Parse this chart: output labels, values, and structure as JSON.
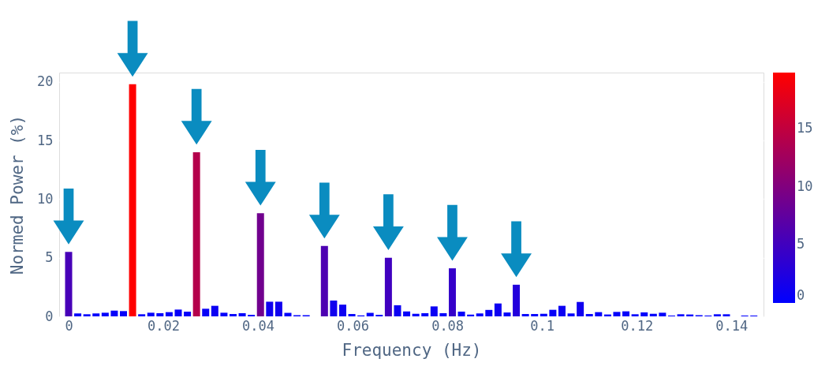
{
  "chart_data": {
    "type": "bar",
    "xlabel": "Frequency (Hz)",
    "ylabel": "Normed Power (%)",
    "x": [
      0,
      0.00193,
      0.00386,
      0.00579,
      0.00772,
      0.00965,
      0.01158,
      0.01351,
      0.01544,
      0.01737,
      0.0193,
      0.02123,
      0.02316,
      0.02509,
      0.02702,
      0.02895,
      0.03088,
      0.03281,
      0.03474,
      0.03667,
      0.0386,
      0.04053,
      0.04246,
      0.04439,
      0.04632,
      0.04825,
      0.05018,
      0.05211,
      0.05404,
      0.05597,
      0.0579,
      0.05983,
      0.06176,
      0.06369,
      0.06562,
      0.06755,
      0.06948,
      0.07141,
      0.07334,
      0.07527,
      0.0772,
      0.07913,
      0.08106,
      0.08299,
      0.08492,
      0.08685,
      0.08878,
      0.09071,
      0.09264,
      0.09457,
      0.0965,
      0.09843,
      0.10036,
      0.10229,
      0.10422,
      0.10615,
      0.10808,
      0.11001,
      0.11194,
      0.11387,
      0.1158,
      0.11773,
      0.11966,
      0.12159,
      0.12352,
      0.12545,
      0.12738,
      0.12931,
      0.13124,
      0.13317,
      0.1351,
      0.13703,
      0.13896,
      0.14089,
      0.14282,
      0.14475
    ],
    "values": [
      5.5,
      0.25,
      0.18,
      0.25,
      0.31,
      0.49,
      0.45,
      19.8,
      0.18,
      0.31,
      0.27,
      0.36,
      0.58,
      0.4,
      14.0,
      0.65,
      0.9,
      0.31,
      0.2,
      0.27,
      0.13,
      8.8,
      1.25,
      1.25,
      0.3,
      0.1,
      0.1,
      0,
      6.0,
      1.35,
      1.0,
      0.2,
      0.08,
      0.3,
      0.13,
      5.0,
      0.95,
      0.42,
      0.22,
      0.27,
      0.85,
      0.27,
      4.1,
      0.4,
      0.15,
      0.25,
      0.55,
      1.1,
      0.33,
      2.7,
      0.2,
      0.2,
      0.22,
      0.56,
      0.9,
      0.25,
      1.23,
      0.2,
      0.36,
      0.16,
      0.38,
      0.43,
      0.18,
      0.34,
      0.22,
      0.31,
      0.07,
      0.18,
      0.16,
      0.1,
      0.07,
      0.18,
      0.18,
      null,
      0.07,
      0.07
    ],
    "xlim": [
      -0.002,
      0.1468
    ],
    "xticks": [
      0,
      0.02,
      0.04,
      0.06,
      0.08,
      0.1,
      0.12,
      0.14
    ],
    "ylim": [
      0,
      20.8
    ],
    "yticks": [
      0,
      5,
      10,
      15,
      20
    ],
    "clim": [
      0,
      19.8
    ],
    "cticks": [
      0,
      5,
      10,
      15
    ],
    "grid": "y"
  }
}
